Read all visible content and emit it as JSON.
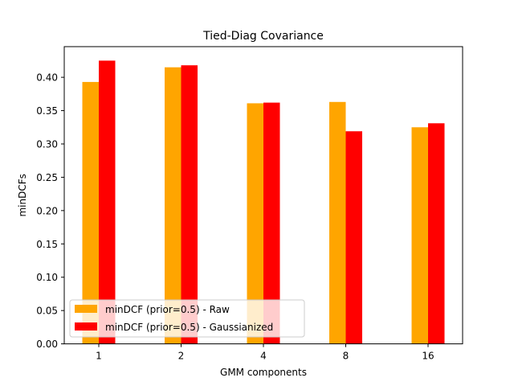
{
  "chart_data": {
    "type": "bar",
    "title": "Tied-Diag Covariance",
    "xlabel": "GMM components",
    "ylabel": "minDCFs",
    "categories": [
      "1",
      "2",
      "4",
      "8",
      "16"
    ],
    "series": [
      {
        "name": "minDCF (prior=0.5) - Raw",
        "color": "#ffa500",
        "values": [
          0.393,
          0.415,
          0.361,
          0.363,
          0.325
        ]
      },
      {
        "name": "minDCF (prior=0.5) - Gaussianized",
        "color": "#ff0000",
        "values": [
          0.425,
          0.418,
          0.362,
          0.319,
          0.331
        ]
      }
    ],
    "ylim": [
      0,
      0.446
    ],
    "yticks": [
      "0.00",
      "0.05",
      "0.10",
      "0.15",
      "0.20",
      "0.25",
      "0.30",
      "0.35",
      "0.40"
    ],
    "grid": false,
    "legend_position": "lower-left"
  }
}
